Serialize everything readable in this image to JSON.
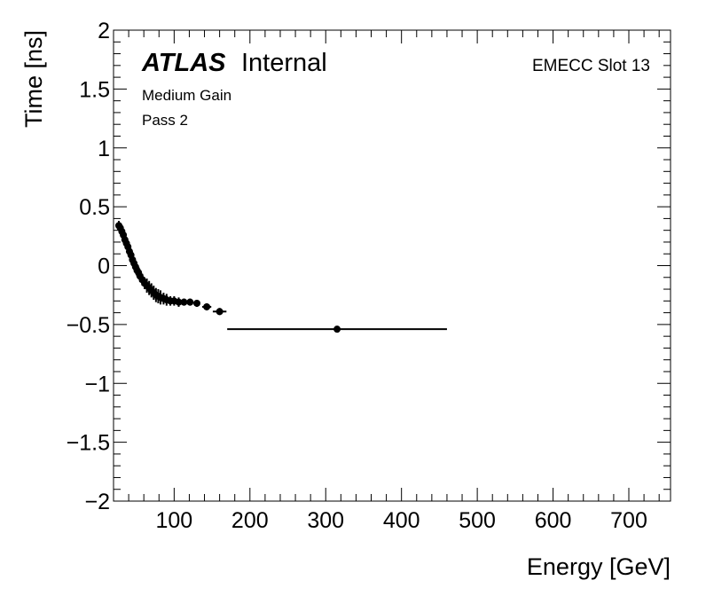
{
  "chart_data": {
    "type": "scatter",
    "title": "",
    "xlabel": "Energy [GeV]",
    "ylabel": "Time [ns]",
    "xlim": [
      20,
      755
    ],
    "ylim": [
      -2,
      2
    ],
    "x_ticks": [
      100,
      200,
      300,
      400,
      500,
      600,
      700
    ],
    "y_ticks": [
      2,
      1.5,
      1,
      0.5,
      0,
      -0.5,
      -1,
      -1.5,
      -2
    ],
    "x_tick_labels": [
      "100",
      "200",
      "300",
      "400",
      "500",
      "600",
      "700"
    ],
    "y_tick_labels": [
      "2",
      "1.5",
      "1",
      "0.5",
      "0",
      "−0.5",
      "−1",
      "−1.5",
      "−2"
    ],
    "annotations": {
      "atlas": "ATLAS",
      "status": "Internal",
      "gain": "Medium Gain",
      "pass": "Pass 2",
      "region": "EMECC Slot 13"
    },
    "series": [
      {
        "name": "EMECC Slot 13",
        "marker": "circle",
        "color": "#000000",
        "points": [
          {
            "x": 27,
            "y": 0.34,
            "xerr": 1,
            "yerr": 0.04
          },
          {
            "x": 29,
            "y": 0.32,
            "xerr": 1,
            "yerr": 0.04
          },
          {
            "x": 31,
            "y": 0.29,
            "xerr": 1,
            "yerr": 0.05
          },
          {
            "x": 33,
            "y": 0.26,
            "xerr": 1,
            "yerr": 0.05
          },
          {
            "x": 35,
            "y": 0.22,
            "xerr": 1,
            "yerr": 0.05
          },
          {
            "x": 37,
            "y": 0.19,
            "xerr": 1,
            "yerr": 0.05
          },
          {
            "x": 39,
            "y": 0.16,
            "xerr": 1,
            "yerr": 0.05
          },
          {
            "x": 41,
            "y": 0.12,
            "xerr": 1,
            "yerr": 0.05
          },
          {
            "x": 43,
            "y": 0.09,
            "xerr": 1,
            "yerr": 0.05
          },
          {
            "x": 45,
            "y": 0.05,
            "xerr": 1,
            "yerr": 0.05
          },
          {
            "x": 47,
            "y": 0.02,
            "xerr": 1,
            "yerr": 0.05
          },
          {
            "x": 49,
            "y": -0.01,
            "xerr": 1,
            "yerr": 0.05
          },
          {
            "x": 51,
            "y": -0.04,
            "xerr": 1,
            "yerr": 0.05
          },
          {
            "x": 53,
            "y": -0.06,
            "xerr": 1,
            "yerr": 0.05
          },
          {
            "x": 55,
            "y": -0.09,
            "xerr": 1,
            "yerr": 0.05
          },
          {
            "x": 58,
            "y": -0.12,
            "xerr": 1.5,
            "yerr": 0.05
          },
          {
            "x": 61,
            "y": -0.15,
            "xerr": 1.5,
            "yerr": 0.05
          },
          {
            "x": 64,
            "y": -0.17,
            "xerr": 1.5,
            "yerr": 0.06
          },
          {
            "x": 67,
            "y": -0.19,
            "xerr": 1.5,
            "yerr": 0.06
          },
          {
            "x": 70,
            "y": -0.21,
            "xerr": 1.5,
            "yerr": 0.06
          },
          {
            "x": 73,
            "y": -0.23,
            "xerr": 1.5,
            "yerr": 0.06
          },
          {
            "x": 76,
            "y": -0.25,
            "xerr": 1.5,
            "yerr": 0.06
          },
          {
            "x": 79,
            "y": -0.26,
            "xerr": 1.5,
            "yerr": 0.06
          },
          {
            "x": 82,
            "y": -0.27,
            "xerr": 1.5,
            "yerr": 0.06
          },
          {
            "x": 86,
            "y": -0.28,
            "xerr": 2,
            "yerr": 0.05
          },
          {
            "x": 90,
            "y": -0.29,
            "xerr": 2,
            "yerr": 0.05
          },
          {
            "x": 95,
            "y": -0.3,
            "xerr": 2,
            "yerr": 0.04
          },
          {
            "x": 100,
            "y": -0.3,
            "xerr": 2.5,
            "yerr": 0.04
          },
          {
            "x": 106,
            "y": -0.31,
            "xerr": 3,
            "yerr": 0.04
          },
          {
            "x": 113,
            "y": -0.31,
            "xerr": 3,
            "yerr": 0.03
          },
          {
            "x": 121,
            "y": -0.31,
            "xerr": 4,
            "yerr": 0.03
          },
          {
            "x": 130,
            "y": -0.32,
            "xerr": 4,
            "yerr": 0.03
          },
          {
            "x": 143,
            "y": -0.35,
            "xerr": 6,
            "yerr": 0.03
          },
          {
            "x": 160,
            "y": -0.39,
            "xerr": 9,
            "yerr": 0.03
          },
          {
            "x": 315,
            "y": -0.54,
            "xerr": 145,
            "yerr": 0.02
          }
        ]
      }
    ]
  }
}
